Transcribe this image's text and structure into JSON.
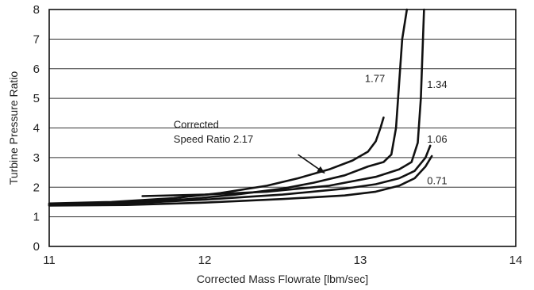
{
  "chart_data": {
    "type": "line",
    "xlabel": "Corrected Mass Flowrate [lbm/sec]",
    "ylabel": "Turbine Pressure Ratio",
    "xlim": [
      11,
      14
    ],
    "ylim": [
      0,
      8
    ],
    "xticks": [
      11,
      12,
      13,
      14
    ],
    "yticks": [
      0,
      1,
      2,
      3,
      4,
      5,
      6,
      7,
      8
    ],
    "grid": "horizontal",
    "series": [
      {
        "name": "2.17",
        "x": [
          11.0,
          11.4,
          11.8,
          12.1,
          12.4,
          12.6,
          12.8,
          12.95,
          13.05,
          13.1,
          13.13,
          13.15
        ],
        "y": [
          1.45,
          1.5,
          1.63,
          1.8,
          2.05,
          2.3,
          2.6,
          2.9,
          3.2,
          3.55,
          4.0,
          4.35
        ]
      },
      {
        "name": "1.77",
        "x": [
          11.0,
          11.5,
          11.9,
          12.2,
          12.5,
          12.7,
          12.9,
          13.05,
          13.15,
          13.2,
          13.23,
          13.25,
          13.27,
          13.3
        ],
        "y": [
          1.42,
          1.48,
          1.6,
          1.75,
          1.95,
          2.15,
          2.4,
          2.7,
          2.85,
          3.1,
          4.0,
          5.5,
          7.0,
          8.0
        ]
      },
      {
        "name": "1.34",
        "x": [
          11.6,
          12.0,
          12.4,
          12.8,
          13.1,
          13.25,
          13.33,
          13.37,
          13.39,
          13.4,
          13.41
        ],
        "y": [
          1.7,
          1.75,
          1.85,
          2.05,
          2.35,
          2.6,
          2.85,
          3.5,
          5.0,
          6.5,
          8.0
        ]
      },
      {
        "name": "1.06",
        "x": [
          11.0,
          11.5,
          12.0,
          12.5,
          12.9,
          13.1,
          13.25,
          13.35,
          13.42,
          13.45
        ],
        "y": [
          1.4,
          1.45,
          1.58,
          1.75,
          1.95,
          2.1,
          2.3,
          2.55,
          3.0,
          3.4
        ]
      },
      {
        "name": "0.71",
        "x": [
          11.0,
          11.5,
          12.0,
          12.5,
          12.9,
          13.1,
          13.25,
          13.35,
          13.42,
          13.46
        ],
        "y": [
          1.38,
          1.4,
          1.48,
          1.6,
          1.72,
          1.85,
          2.05,
          2.3,
          2.7,
          3.05
        ]
      }
    ],
    "annotations": [
      {
        "text": "Corrected",
        "x": 11.8,
        "y": 4.0
      },
      {
        "text": "Speed Ratio 2.17",
        "x": 11.8,
        "y": 3.5
      },
      {
        "text": "1.77",
        "x": 13.03,
        "y": 5.55
      },
      {
        "text": "1.34",
        "x": 13.43,
        "y": 5.35
      },
      {
        "text": "1.06",
        "x": 13.43,
        "y": 3.5
      },
      {
        "text": "0.71",
        "x": 13.43,
        "y": 2.1
      }
    ],
    "arrow": {
      "from": [
        12.6,
        3.1
      ],
      "to": [
        12.77,
        2.48
      ]
    }
  }
}
